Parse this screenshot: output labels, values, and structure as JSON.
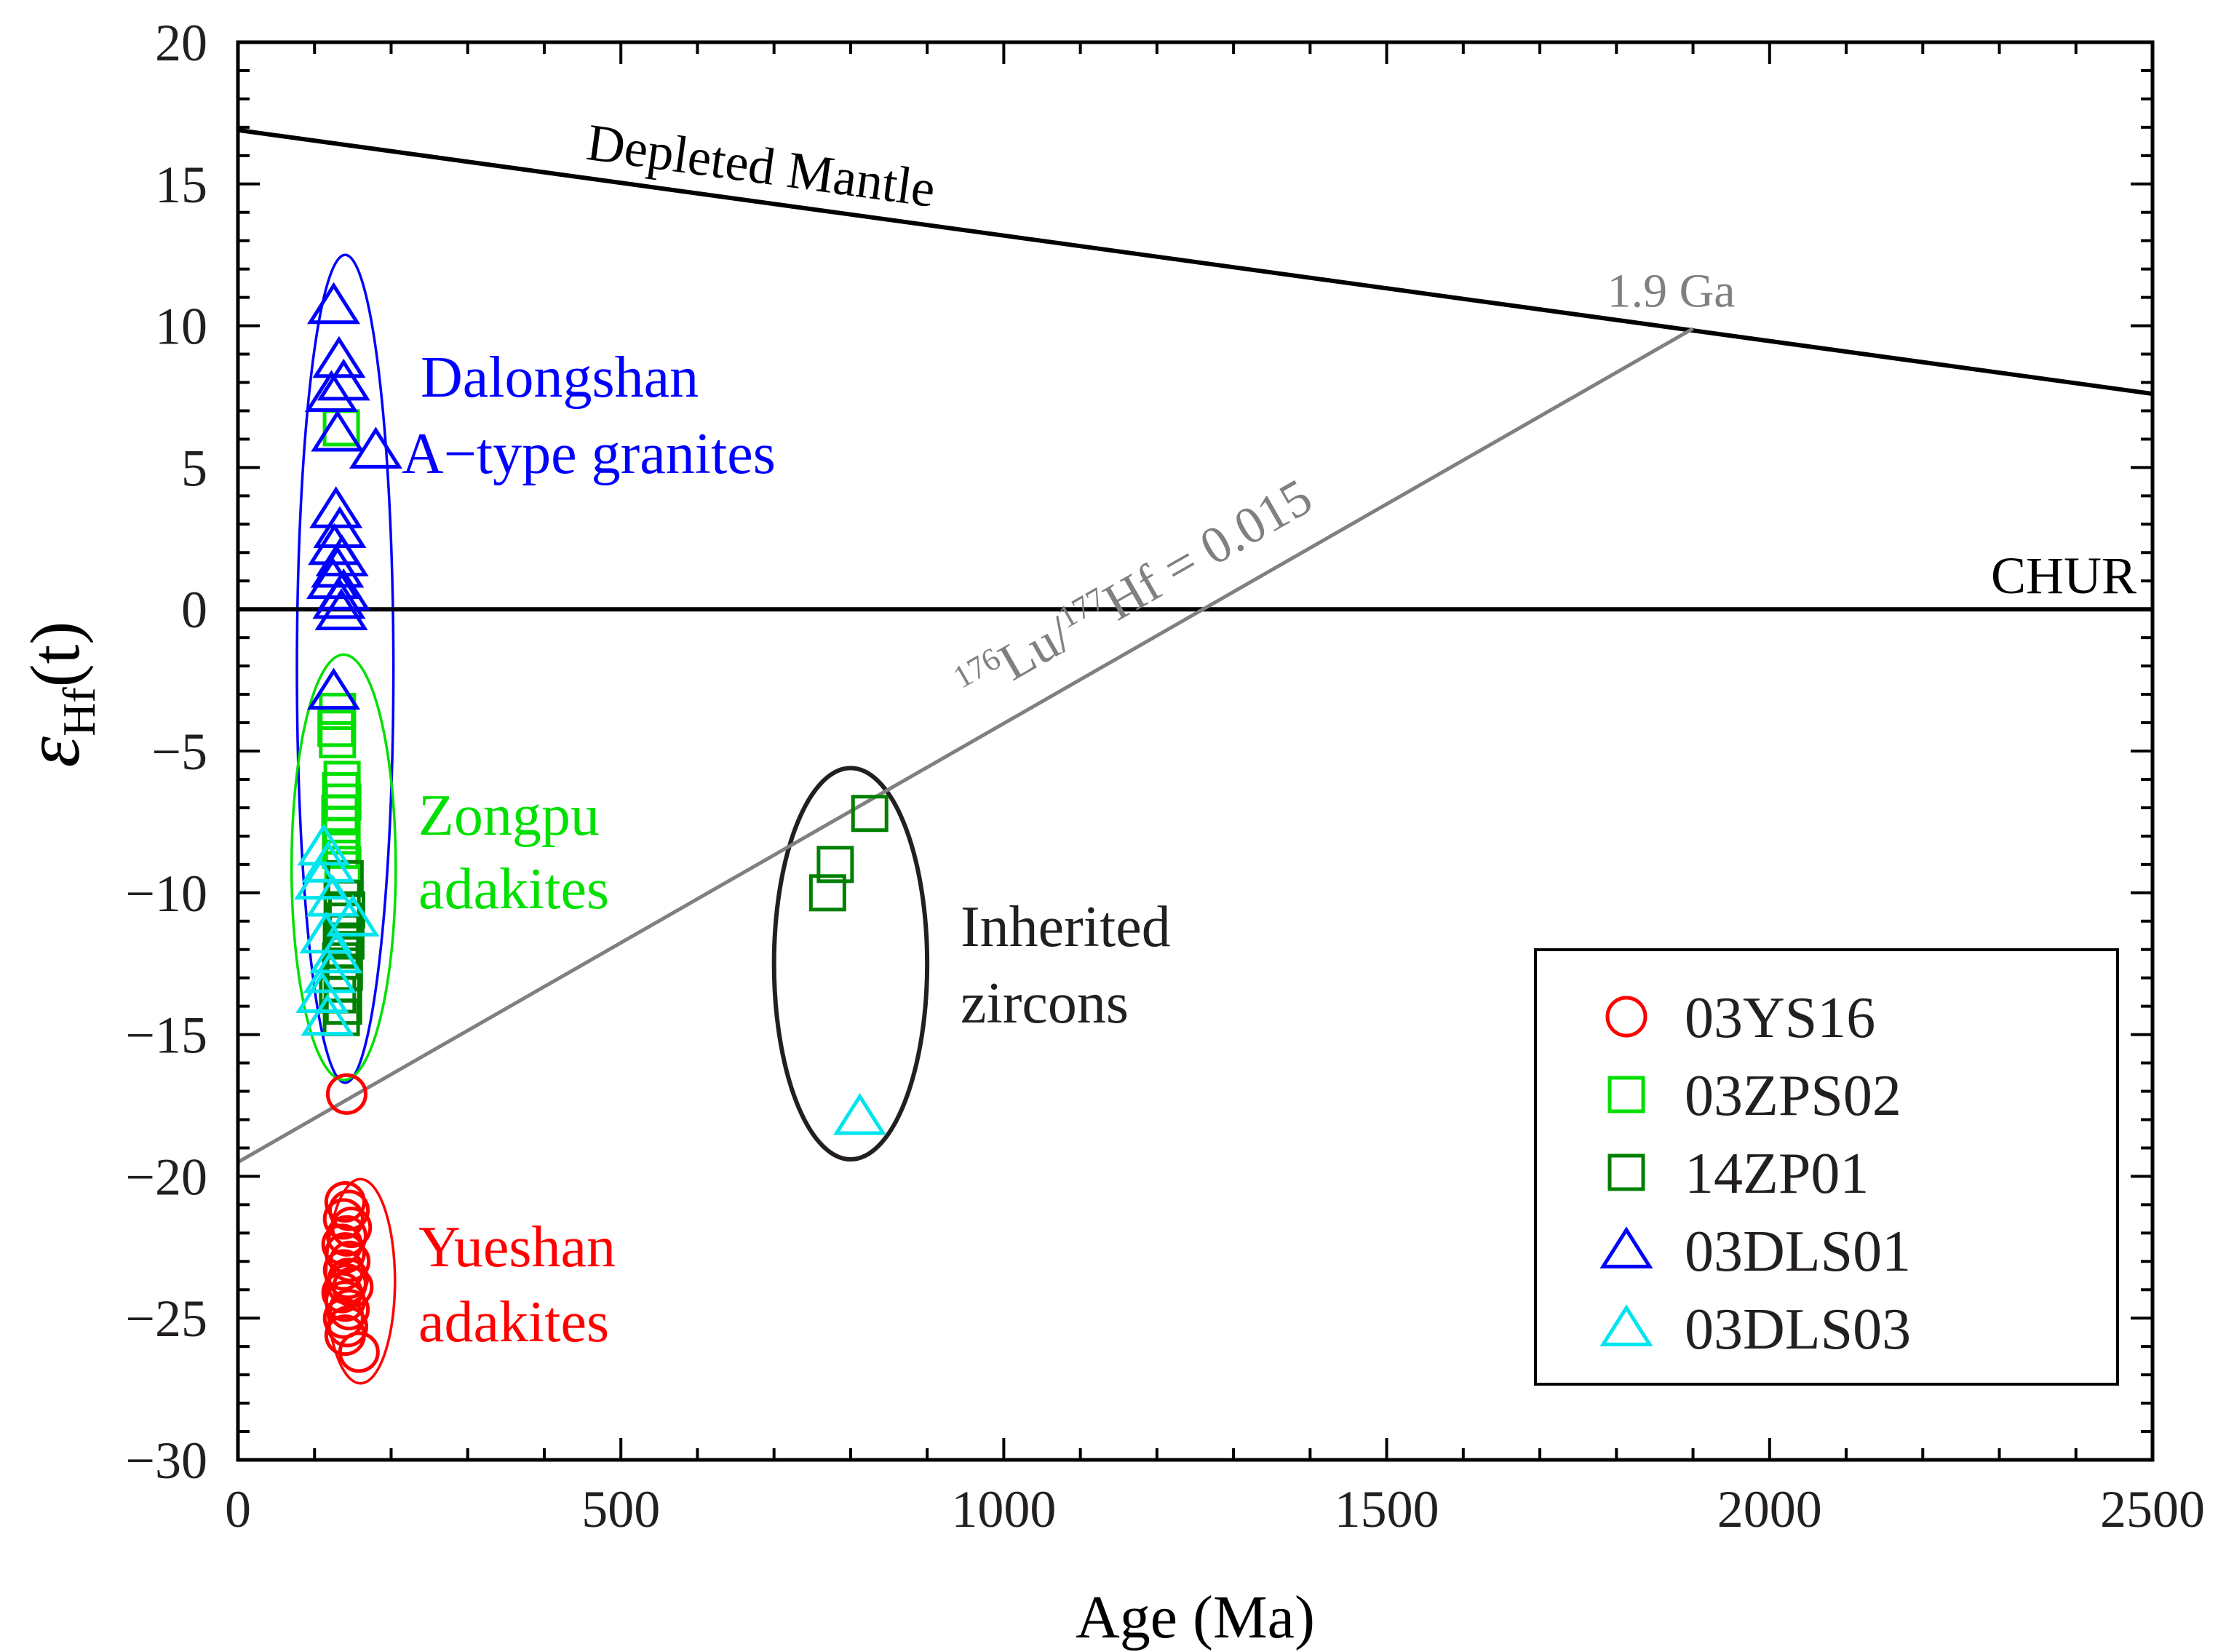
{
  "chart_data": {
    "type": "scatter",
    "title": "",
    "xlabel": "Age (Ma)",
    "ylabel_symbol": "ε",
    "ylabel_sub": "Hf",
    "ylabel_suffix": "(t)",
    "xlim": [
      0,
      2500
    ],
    "ylim": [
      -30,
      20
    ],
    "x_ticks": [
      0,
      500,
      1000,
      1500,
      2000,
      2500
    ],
    "y_ticks": [
      20,
      15,
      10,
      5,
      0,
      -5,
      -10,
      -15,
      -20,
      -25,
      -30
    ],
    "x_minor_step": 100,
    "y_minor_step": 1,
    "reference_lines": [
      {
        "name": "Depleted Mantle",
        "label": "Depleted Mantle",
        "x": [
          0,
          2500
        ],
        "y": [
          16.9,
          7.6
        ],
        "color": "#000000"
      },
      {
        "name": "CHUR",
        "label": "CHUR",
        "x": [
          0,
          2500
        ],
        "y": [
          0,
          0
        ],
        "color": "#000000"
      },
      {
        "name": "Lu-Hf evolution",
        "label_pre": "176",
        "label_mid1": "Lu/",
        "label_pre2": "177",
        "label_mid2": "Hf = 0.015",
        "x": [
          0,
          1900
        ],
        "y": [
          -19.5,
          9.9
        ],
        "color": "#808080"
      }
    ],
    "point_label": {
      "text": "1.9 Ga",
      "x": 1900,
      "y": 9.9,
      "color": "#808080"
    },
    "series": [
      {
        "name": "03YS16",
        "marker": "circle",
        "color": "#ff0000",
        "points": [
          [
            142,
            -17.1
          ],
          [
            140,
            -20.9
          ],
          [
            145,
            -21.2
          ],
          [
            138,
            -21.5
          ],
          [
            148,
            -21.8
          ],
          [
            142,
            -22.1
          ],
          [
            136,
            -22.4
          ],
          [
            140,
            -22.7
          ],
          [
            146,
            -23.0
          ],
          [
            138,
            -23.3
          ],
          [
            144,
            -23.6
          ],
          [
            142,
            -23.8
          ],
          [
            150,
            -23.9
          ],
          [
            136,
            -24.1
          ],
          [
            140,
            -24.4
          ],
          [
            145,
            -24.7
          ],
          [
            138,
            -25.0
          ],
          [
            143,
            -25.3
          ],
          [
            140,
            -25.6
          ],
          [
            158,
            -26.2
          ]
        ]
      },
      {
        "name": "03ZPS02",
        "marker": "square",
        "color": "#00e000",
        "points": [
          [
            135,
            6.4
          ],
          [
            130,
            -3.6
          ],
          [
            128,
            -4.2
          ],
          [
            130,
            -4.6
          ],
          [
            136,
            -6.0
          ],
          [
            134,
            -6.4
          ],
          [
            137,
            -6.8
          ],
          [
            133,
            -7.2
          ],
          [
            135,
            -7.6
          ],
          [
            136,
            -8.0
          ],
          [
            134,
            -8.5
          ],
          [
            137,
            -9.0
          ]
        ]
      },
      {
        "name": "14ZP01",
        "marker": "square",
        "color": "#008000",
        "points": [
          [
            140,
            -9.5
          ],
          [
            136,
            -10.2
          ],
          [
            142,
            -10.6
          ],
          [
            138,
            -11.0
          ],
          [
            135,
            -11.4
          ],
          [
            141,
            -11.7
          ],
          [
            137,
            -12.0
          ],
          [
            134,
            -12.4
          ],
          [
            139,
            -12.8
          ],
          [
            136,
            -13.2
          ],
          [
            130,
            -13.6
          ],
          [
            138,
            -14.0
          ],
          [
            135,
            -14.4
          ],
          [
            770,
            -10.0
          ],
          [
            780,
            -9.0
          ],
          [
            825,
            -7.2
          ]
        ]
      },
      {
        "name": "03DLS01",
        "marker": "triangle",
        "color": "#0000ff",
        "points": [
          [
            125,
            10.7
          ],
          [
            132,
            8.8
          ],
          [
            138,
            8.0
          ],
          [
            122,
            7.6
          ],
          [
            130,
            6.2
          ],
          [
            180,
            5.6
          ],
          [
            128,
            3.5
          ],
          [
            133,
            2.8
          ],
          [
            126,
            2.2
          ],
          [
            136,
            1.8
          ],
          [
            130,
            1.4
          ],
          [
            124,
            1.0
          ],
          [
            138,
            0.6
          ],
          [
            132,
            0.3
          ],
          [
            135,
            -0.1
          ],
          [
            125,
            -2.9
          ]
        ]
      },
      {
        "name": "03DLS03",
        "marker": "triangle",
        "color": "#00e5ee",
        "points": [
          [
            112,
            -8.4
          ],
          [
            118,
            -9.0
          ],
          [
            108,
            -9.6
          ],
          [
            124,
            -10.2
          ],
          [
            150,
            -10.9
          ],
          [
            115,
            -11.5
          ],
          [
            128,
            -12.2
          ],
          [
            120,
            -12.9
          ],
          [
            110,
            -13.6
          ],
          [
            117,
            -14.4
          ],
          [
            812,
            -17.9
          ]
        ]
      }
    ],
    "annotations": [
      {
        "name": "dalongshan",
        "lines": [
          "Dalongshan",
          "A−type granites"
        ],
        "color": "#0000ff"
      },
      {
        "name": "zongpu",
        "lines": [
          "Zongpu",
          "adakites"
        ],
        "color": "#00e000"
      },
      {
        "name": "yueshan",
        "lines": [
          "Yueshan",
          "adakites"
        ],
        "color": "#ff0000"
      },
      {
        "name": "inherited",
        "lines": [
          "Inherited",
          "zircons"
        ],
        "color": "#231f20"
      }
    ],
    "ellipses": [
      {
        "name": "dalongshan",
        "cx": 140,
        "cy": -2.1,
        "rx": 63,
        "ry": 14.6,
        "color": "#0000ff"
      },
      {
        "name": "zongpu",
        "cx": 138,
        "cy": -9.1,
        "rx": 68,
        "ry": 7.5,
        "color": "#00e000"
      },
      {
        "name": "yueshan",
        "cx": 160,
        "cy": -23.7,
        "rx": 45,
        "ry": 3.6,
        "color": "#ff0000"
      },
      {
        "name": "inherited",
        "cx": 800,
        "cy": -12.5,
        "rx": 100,
        "ry": 6.9,
        "color": "#231f20"
      }
    ],
    "legend": {
      "position": "bottom-right",
      "entries": [
        "03YS16",
        "03ZPS02",
        "14ZP01",
        "03DLS01",
        "03DLS03"
      ]
    }
  }
}
